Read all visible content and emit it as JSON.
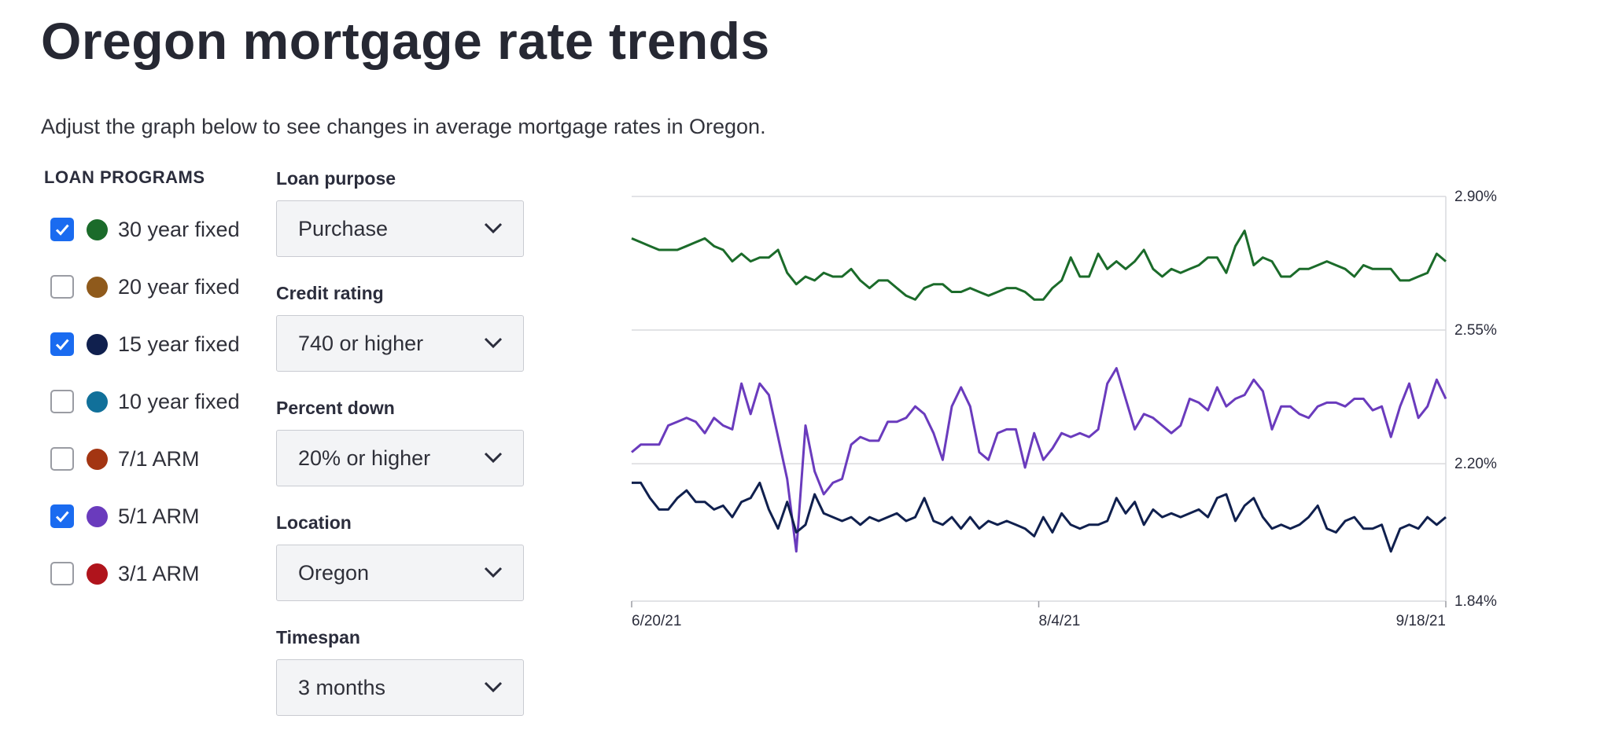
{
  "page": {
    "title": "Oregon mortgage rate trends",
    "subtitle": "Adjust the graph below to see changes in average mortgage rates in Oregon."
  },
  "loan_programs": {
    "heading": "LOAN PROGRAMS",
    "items": [
      {
        "label": "30 year fixed",
        "checked": true,
        "color": "#1b6b2a"
      },
      {
        "label": "20 year fixed",
        "checked": false,
        "color": "#8f5a1c"
      },
      {
        "label": "15 year fixed",
        "checked": true,
        "color": "#10204e"
      },
      {
        "label": "10 year fixed",
        "checked": false,
        "color": "#11709a"
      },
      {
        "label": "7/1 ARM",
        "checked": false,
        "color": "#a33512"
      },
      {
        "label": "5/1 ARM",
        "checked": true,
        "color": "#6a3bbd"
      },
      {
        "label": "3/1 ARM",
        "checked": false,
        "color": "#b0141c"
      }
    ]
  },
  "filters": [
    {
      "label": "Loan purpose",
      "value": "Purchase"
    },
    {
      "label": "Credit rating",
      "value": "740 or higher"
    },
    {
      "label": "Percent down",
      "value": "20% or higher"
    },
    {
      "label": "Location",
      "value": "Oregon"
    },
    {
      "label": "Timespan",
      "value": "3 months"
    }
  ],
  "chart_data": {
    "type": "line",
    "ylim": [
      1.84,
      2.9
    ],
    "y_ticks": [
      "2.90%",
      "2.55%",
      "2.20%",
      "1.84%"
    ],
    "y_tick_values": [
      2.9,
      2.55,
      2.2,
      1.84
    ],
    "x_ticks": [
      "6/20/21",
      "8/4/21",
      "9/18/21"
    ],
    "x_range_days": 90,
    "grid": true,
    "legend": "none",
    "series": [
      {
        "color": "#1b6b2a",
        "values": [
          2.79,
          2.78,
          2.77,
          2.76,
          2.76,
          2.76,
          2.77,
          2.78,
          2.79,
          2.77,
          2.76,
          2.73,
          2.75,
          2.73,
          2.74,
          2.74,
          2.76,
          2.7,
          2.67,
          2.69,
          2.68,
          2.7,
          2.69,
          2.69,
          2.71,
          2.68,
          2.66,
          2.68,
          2.68,
          2.66,
          2.64,
          2.63,
          2.66,
          2.67,
          2.67,
          2.65,
          2.65,
          2.66,
          2.65,
          2.64,
          2.65,
          2.66,
          2.66,
          2.65,
          2.63,
          2.63,
          2.66,
          2.68,
          2.74,
          2.69,
          2.69,
          2.75,
          2.71,
          2.73,
          2.71,
          2.73,
          2.76,
          2.71,
          2.69,
          2.71,
          2.7,
          2.71,
          2.72,
          2.74,
          2.74,
          2.7,
          2.77,
          2.81,
          2.72,
          2.74,
          2.73,
          2.69,
          2.69,
          2.71,
          2.71,
          2.72,
          2.73,
          2.72,
          2.71,
          2.69,
          2.72,
          2.71,
          2.71,
          2.71,
          2.68,
          2.68,
          2.69,
          2.7,
          2.75,
          2.73
        ]
      },
      {
        "color": "#6a3bbd",
        "values": [
          2.23,
          2.25,
          2.25,
          2.25,
          2.3,
          2.31,
          2.32,
          2.31,
          2.28,
          2.32,
          2.3,
          2.29,
          2.41,
          2.33,
          2.41,
          2.38,
          2.27,
          2.16,
          1.97,
          2.3,
          2.18,
          2.12,
          2.15,
          2.16,
          2.25,
          2.27,
          2.26,
          2.26,
          2.31,
          2.31,
          2.32,
          2.35,
          2.33,
          2.28,
          2.21,
          2.35,
          2.4,
          2.35,
          2.23,
          2.21,
          2.28,
          2.29,
          2.29,
          2.19,
          2.28,
          2.21,
          2.24,
          2.28,
          2.27,
          2.28,
          2.27,
          2.29,
          2.41,
          2.45,
          2.37,
          2.29,
          2.33,
          2.32,
          2.3,
          2.28,
          2.3,
          2.37,
          2.36,
          2.34,
          2.4,
          2.35,
          2.37,
          2.38,
          2.42,
          2.39,
          2.29,
          2.35,
          2.35,
          2.33,
          2.32,
          2.35,
          2.36,
          2.36,
          2.35,
          2.37,
          2.37,
          2.34,
          2.35,
          2.27,
          2.35,
          2.41,
          2.32,
          2.35,
          2.42,
          2.37
        ]
      },
      {
        "color": "#10204e",
        "values": [
          2.15,
          2.15,
          2.11,
          2.08,
          2.08,
          2.11,
          2.13,
          2.1,
          2.1,
          2.08,
          2.09,
          2.06,
          2.1,
          2.11,
          2.15,
          2.08,
          2.03,
          2.1,
          2.02,
          2.04,
          2.12,
          2.07,
          2.06,
          2.05,
          2.06,
          2.04,
          2.06,
          2.05,
          2.06,
          2.07,
          2.05,
          2.06,
          2.11,
          2.05,
          2.04,
          2.06,
          2.03,
          2.06,
          2.03,
          2.05,
          2.04,
          2.05,
          2.04,
          2.03,
          2.01,
          2.06,
          2.02,
          2.07,
          2.04,
          2.03,
          2.04,
          2.04,
          2.05,
          2.11,
          2.07,
          2.1,
          2.04,
          2.08,
          2.06,
          2.07,
          2.06,
          2.07,
          2.08,
          2.06,
          2.11,
          2.12,
          2.05,
          2.09,
          2.11,
          2.06,
          2.03,
          2.04,
          2.03,
          2.04,
          2.06,
          2.09,
          2.03,
          2.02,
          2.05,
          2.06,
          2.03,
          2.03,
          2.04,
          1.97,
          2.03,
          2.04,
          2.03,
          2.06,
          2.04,
          2.06
        ]
      }
    ]
  }
}
